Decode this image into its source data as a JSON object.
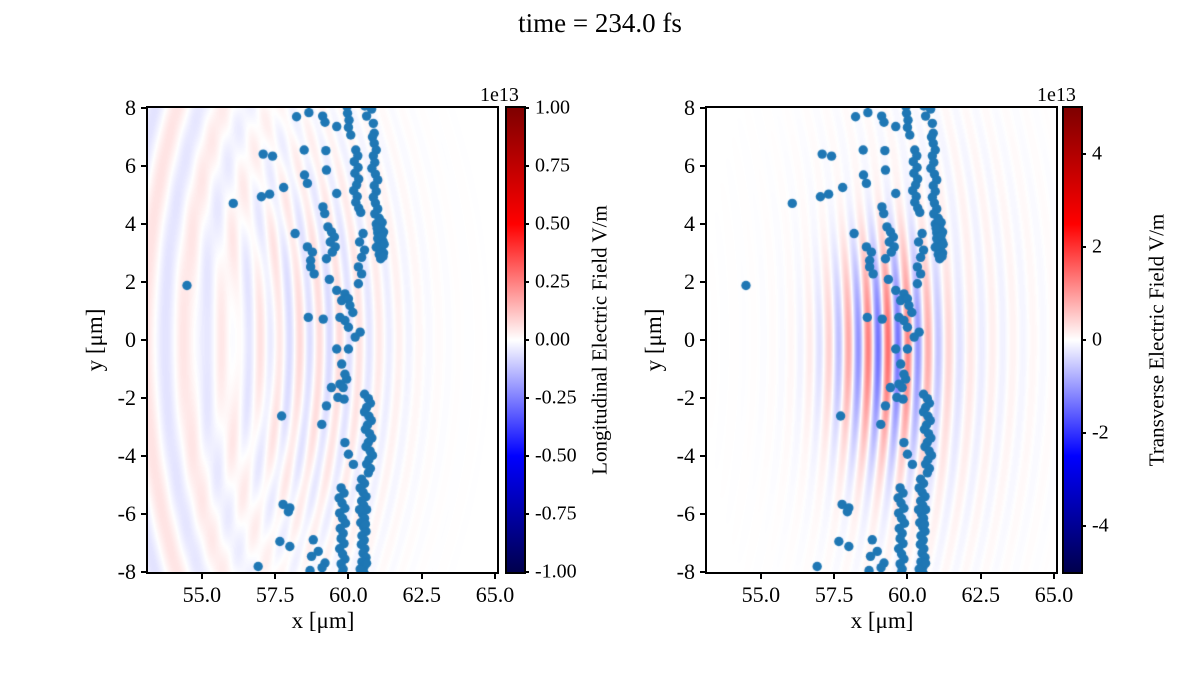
{
  "chart_data": {
    "type": "scatter",
    "title": "time = 234.0 fs",
    "panels": [
      {
        "name": "longitudinal",
        "xlabel": "x [μm]",
        "ylabel": "y [μm]",
        "xlim": [
          53.16,
          65.07
        ],
        "ylim": [
          -8,
          8
        ],
        "x_tick_values": [
          55,
          57.5,
          60,
          62.5,
          65
        ],
        "x_tick_labels": [
          "55.0",
          "57.5",
          "60.0",
          "62.5",
          "65.0"
        ],
        "y_tick_values": [
          8,
          6,
          4,
          2,
          0,
          -2,
          -4,
          -6,
          -8
        ],
        "y_tick_labels": [
          "8",
          "6",
          "4",
          "2",
          "0",
          "-2",
          "-4",
          "-6",
          "-8"
        ],
        "colorbar": {
          "label": "Longitudinal Electric Field V/m",
          "scale_text": "1e13",
          "colormap": "seismic",
          "vmin": -1,
          "vmax": 1,
          "unit_scale": "1e13 V/m",
          "tick_values": [
            1,
            0.75,
            0.5,
            0.25,
            0,
            -0.25,
            -0.5,
            -0.75,
            -1
          ],
          "tick_labels": [
            "1.00",
            "0.75",
            "0.50",
            "0.25",
            "0.00",
            "-0.25",
            "-0.50",
            "-0.75",
            "-1.00"
          ]
        },
        "field": {
          "components": [
            {
              "kind": "stripes",
              "amp": 0.07,
              "x0": 59.0,
              "sx": 2.8,
              "y0": 0,
              "sy": 7.0,
              "wavelength": 0.68,
              "curve": 0.02
            },
            {
              "kind": "fan",
              "amp": 0.055,
              "cx": 62.5,
              "cy": 0,
              "aspect": 0.55,
              "wavelength": 1.35,
              "reach": 3.8
            }
          ]
        }
      },
      {
        "name": "transverse",
        "xlabel": "x [μm]",
        "ylabel": "y [μm]",
        "xlim": [
          53.16,
          65.07
        ],
        "ylim": [
          -8,
          8
        ],
        "x_tick_values": [
          55,
          57.5,
          60,
          62.5,
          65
        ],
        "x_tick_labels": [
          "55.0",
          "57.5",
          "60.0",
          "62.5",
          "65.0"
        ],
        "y_tick_values": [
          8,
          6,
          4,
          2,
          0,
          -2,
          -4,
          -6,
          -8
        ],
        "y_tick_labels": [
          "8",
          "6",
          "4",
          "2",
          "0",
          "-2",
          "-4",
          "-6",
          "-8"
        ],
        "colorbar": {
          "label": "Transverse Electric Field V/m",
          "scale_text": "1e13",
          "colormap": "seismic",
          "vmin": -5,
          "vmax": 5,
          "unit_scale": "1e13 V/m",
          "tick_values": [
            4,
            2,
            0,
            -2,
            -4
          ],
          "tick_labels": [
            "4",
            "2",
            "0",
            "-2",
            "-4"
          ]
        },
        "field": {
          "components": [
            {
              "kind": "stripes",
              "amp": 0.3,
              "x0": 59.3,
              "sx": 1.9,
              "y0": -0.2,
              "sy": 3.8,
              "wavelength": 0.68,
              "curve": 0.015
            },
            {
              "kind": "stripes",
              "amp": 0.06,
              "x0": 60.2,
              "sx": 3.5,
              "y0": 0,
              "sy": 7.0,
              "wavelength": 0.68,
              "curve": 0.015
            }
          ]
        }
      }
    ],
    "particles": {
      "description": "electron macro-particle positions (same in both panels)",
      "color": "#1f77b4",
      "marker_radius_px": 4.7,
      "points": [
        [
          54.49,
          1.88
        ],
        [
          56.07,
          4.71
        ],
        [
          57.09,
          6.41
        ],
        [
          57.41,
          6.34
        ],
        [
          58.23,
          7.7
        ],
        [
          58.65,
          7.84
        ],
        [
          59.12,
          7.72
        ],
        [
          59.2,
          7.51
        ],
        [
          59.6,
          7.36
        ],
        [
          58.49,
          6.55
        ],
        [
          59.23,
          6.53
        ],
        [
          59.25,
          5.86
        ],
        [
          57.03,
          4.94
        ],
        [
          57.31,
          5.03
        ],
        [
          57.79,
          5.26
        ],
        [
          58.5,
          5.69
        ],
        [
          58.6,
          5.4
        ],
        [
          59.6,
          5.05
        ],
        [
          59.13,
          4.59
        ],
        [
          59.19,
          4.36
        ],
        [
          58.18,
          3.67
        ],
        [
          59.3,
          3.9
        ],
        [
          59.42,
          3.73
        ],
        [
          59.52,
          3.55
        ],
        [
          59.38,
          3.38
        ],
        [
          59.55,
          3.21
        ],
        [
          59.45,
          3.03
        ],
        [
          58.6,
          3.21
        ],
        [
          58.77,
          3.03
        ],
        [
          58.71,
          2.74
        ],
        [
          58.71,
          2.52
        ],
        [
          58.83,
          2.28
        ],
        [
          59.25,
          2.8
        ],
        [
          59.35,
          2.09
        ],
        [
          59.6,
          1.71
        ],
        [
          59.88,
          1.59
        ],
        [
          59.77,
          1.36
        ],
        [
          60.0,
          1.42
        ],
        [
          60.05,
          1.19
        ],
        [
          58.63,
          0.78
        ],
        [
          59.14,
          0.72
        ],
        [
          59.71,
          0.78
        ],
        [
          59.88,
          0.67
        ],
        [
          60.0,
          0.44
        ],
        [
          60.4,
          0.27
        ],
        [
          60.23,
          0.1
        ],
        [
          60.15,
          0.95
        ],
        [
          59.95,
          8.05
        ],
        [
          59.97,
          7.82
        ],
        [
          60.02,
          7.58
        ],
        [
          60.0,
          7.33
        ],
        [
          60.08,
          7.07
        ],
        [
          60.56,
          8.07
        ],
        [
          60.79,
          7.96
        ],
        [
          60.62,
          7.72
        ],
        [
          60.85,
          7.47
        ],
        [
          60.88,
          7.13
        ],
        [
          60.82,
          7.0
        ],
        [
          60.88,
          6.78
        ],
        [
          60.95,
          6.55
        ],
        [
          60.85,
          6.35
        ],
        [
          60.9,
          6.12
        ],
        [
          60.8,
          5.92
        ],
        [
          60.92,
          5.72
        ],
        [
          61.0,
          5.52
        ],
        [
          60.88,
          5.32
        ],
        [
          60.95,
          5.12
        ],
        [
          60.85,
          4.92
        ],
        [
          60.92,
          4.72
        ],
        [
          61.0,
          4.52
        ],
        [
          60.9,
          4.35
        ],
        [
          60.25,
          6.55
        ],
        [
          60.32,
          6.35
        ],
        [
          60.2,
          6.15
        ],
        [
          60.33,
          5.95
        ],
        [
          60.22,
          5.75
        ],
        [
          60.35,
          5.55
        ],
        [
          60.28,
          5.35
        ],
        [
          60.18,
          5.15
        ],
        [
          60.3,
          4.95
        ],
        [
          60.25,
          4.75
        ],
        [
          60.35,
          4.55
        ],
        [
          60.42,
          4.4
        ],
        [
          61.05,
          4.2
        ],
        [
          61.15,
          4.05
        ],
        [
          60.95,
          4.0
        ],
        [
          61.1,
          3.88
        ],
        [
          61.2,
          3.72
        ],
        [
          61.0,
          3.7
        ],
        [
          61.1,
          3.55
        ],
        [
          61.18,
          3.4
        ],
        [
          61.05,
          3.35
        ],
        [
          60.95,
          3.2
        ],
        [
          61.12,
          3.15
        ],
        [
          61.2,
          3.0
        ],
        [
          61.05,
          2.95
        ],
        [
          61.1,
          2.8
        ],
        [
          61.0,
          3.5
        ],
        [
          61.15,
          3.6
        ],
        [
          61.08,
          4.1
        ],
        [
          60.98,
          3.85
        ],
        [
          61.22,
          3.3
        ],
        [
          61.18,
          2.88
        ],
        [
          60.5,
          3.67
        ],
        [
          60.38,
          3.38
        ],
        [
          60.55,
          3.1
        ],
        [
          60.45,
          2.85
        ],
        [
          60.34,
          2.52
        ],
        [
          60.45,
          2.28
        ],
        [
          60.34,
          1.94
        ],
        [
          59.6,
          -0.31
        ],
        [
          60.0,
          -0.31
        ],
        [
          59.77,
          -0.83
        ],
        [
          59.94,
          -1.35
        ],
        [
          59.88,
          -1.18
        ],
        [
          59.71,
          -1.52
        ],
        [
          59.82,
          -1.64
        ],
        [
          59.42,
          -1.64
        ],
        [
          59.25,
          -2.27
        ],
        [
          59.64,
          -1.98
        ],
        [
          59.85,
          -2.04
        ],
        [
          57.72,
          -2.62
        ],
        [
          59.09,
          -2.91
        ],
        [
          60.55,
          -1.87
        ],
        [
          60.68,
          -2.02
        ],
        [
          60.75,
          -2.18
        ],
        [
          60.62,
          -2.33
        ],
        [
          60.55,
          -2.48
        ],
        [
          60.7,
          -2.63
        ],
        [
          60.78,
          -2.78
        ],
        [
          60.65,
          -2.93
        ],
        [
          60.58,
          -3.08
        ],
        [
          60.72,
          -3.23
        ],
        [
          60.8,
          -3.38
        ],
        [
          60.68,
          -3.53
        ],
        [
          60.6,
          -3.68
        ],
        [
          60.74,
          -3.83
        ],
        [
          60.82,
          -3.98
        ],
        [
          60.7,
          -4.13
        ],
        [
          60.62,
          -4.28
        ],
        [
          60.75,
          -4.43
        ],
        [
          60.68,
          -4.58
        ],
        [
          59.88,
          -3.54
        ],
        [
          60.0,
          -3.94
        ],
        [
          60.17,
          -4.29
        ],
        [
          57.77,
          -5.67
        ],
        [
          58.0,
          -5.79
        ],
        [
          57.95,
          -5.92
        ],
        [
          57.66,
          -6.95
        ],
        [
          58.0,
          -7.12
        ],
        [
          56.92,
          -7.81
        ],
        [
          58.8,
          -6.89
        ],
        [
          58.97,
          -7.29
        ],
        [
          58.74,
          -7.46
        ],
        [
          59.2,
          -7.69
        ],
        [
          58.69,
          -7.95
        ],
        [
          59.1,
          -7.85
        ],
        [
          59.75,
          -5.1
        ],
        [
          59.85,
          -5.28
        ],
        [
          59.68,
          -5.45
        ],
        [
          59.78,
          -5.62
        ],
        [
          59.88,
          -5.8
        ],
        [
          59.7,
          -5.97
        ],
        [
          59.8,
          -6.15
        ],
        [
          59.9,
          -6.32
        ],
        [
          59.72,
          -6.5
        ],
        [
          59.82,
          -6.67
        ],
        [
          59.75,
          -6.85
        ],
        [
          59.85,
          -7.02
        ],
        [
          59.7,
          -7.2
        ],
        [
          59.8,
          -7.38
        ],
        [
          59.88,
          -7.55
        ],
        [
          59.75,
          -7.72
        ],
        [
          59.82,
          -7.9
        ],
        [
          59.78,
          -8.05
        ],
        [
          60.45,
          -4.8
        ],
        [
          60.55,
          -4.95
        ],
        [
          60.4,
          -5.1
        ],
        [
          60.5,
          -5.25
        ],
        [
          60.6,
          -5.4
        ],
        [
          60.45,
          -5.55
        ],
        [
          60.52,
          -5.7
        ],
        [
          60.62,
          -5.85
        ],
        [
          60.48,
          -6.0
        ],
        [
          60.55,
          -6.15
        ],
        [
          60.42,
          -6.3
        ],
        [
          60.52,
          -6.45
        ],
        [
          60.6,
          -6.6
        ],
        [
          60.46,
          -6.75
        ],
        [
          60.54,
          -6.9
        ],
        [
          60.44,
          -7.05
        ],
        [
          60.56,
          -7.2
        ],
        [
          60.5,
          -7.35
        ],
        [
          60.6,
          -7.5
        ],
        [
          60.46,
          -7.65
        ],
        [
          60.54,
          -7.8
        ],
        [
          60.5,
          -7.95
        ],
        [
          60.56,
          -8.08
        ],
        [
          60.4,
          -7.9
        ],
        [
          60.62,
          -7.7
        ],
        [
          60.58,
          -6.35
        ],
        [
          60.38,
          -5.85
        ]
      ]
    }
  }
}
